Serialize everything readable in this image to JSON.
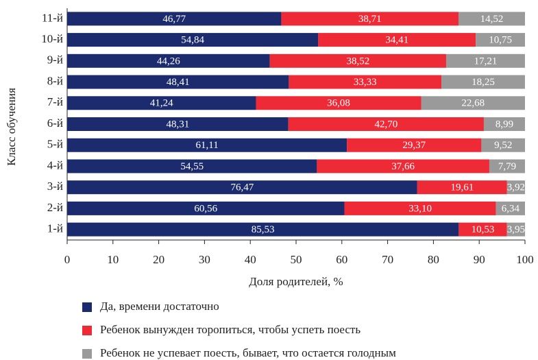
{
  "chart_data": {
    "type": "bar",
    "orientation": "horizontal",
    "stacked": true,
    "y_label": "Класс обучения",
    "x_label": "Доля родителей, %",
    "categories": [
      "1-й",
      "2-й",
      "3-й",
      "4-й",
      "5-й",
      "6-й",
      "7-й",
      "8-й",
      "9-й",
      "10-й",
      "11-й"
    ],
    "series": [
      {
        "name": "Да, времени достаточно",
        "color": "#1b2b6e",
        "values": [
          85.53,
          60.56,
          76.47,
          54.55,
          61.11,
          48.31,
          41.24,
          48.41,
          44.26,
          54.84,
          46.77
        ],
        "value_labels": [
          "85,53",
          "60,56",
          "76,47",
          "54,55",
          "61,11",
          "48,31",
          "41,24",
          "48,41",
          "44,26",
          "54,84",
          "46,77"
        ]
      },
      {
        "name": "Ребенок вынужден торопиться, чтобы успеть поесть",
        "color": "#ee2a36",
        "values": [
          10.53,
          33.1,
          19.61,
          37.66,
          29.37,
          42.7,
          36.08,
          33.33,
          38.52,
          34.41,
          38.71
        ],
        "value_labels": [
          "10,53",
          "33,10",
          "19,61",
          "37,66",
          "29,37",
          "42,70",
          "36,08",
          "33,33",
          "38,52",
          "34,41",
          "38,71"
        ]
      },
      {
        "name": "Ребенок не успевает поесть, бывает, что остается голодным",
        "color": "#9a9a9a",
        "values": [
          3.95,
          6.34,
          3.92,
          7.79,
          9.52,
          8.99,
          22.68,
          18.25,
          17.21,
          10.75,
          14.52
        ],
        "value_labels": [
          "3,95",
          "6,34",
          "3,92",
          "7,79",
          "9,52",
          "8,99",
          "22,68",
          "18,25",
          "17,21",
          "10,75",
          "14,52"
        ]
      }
    ],
    "xlim": [
      0,
      100
    ],
    "xticks": [
      0,
      10,
      20,
      30,
      40,
      50,
      60,
      70,
      80,
      90,
      100
    ]
  }
}
